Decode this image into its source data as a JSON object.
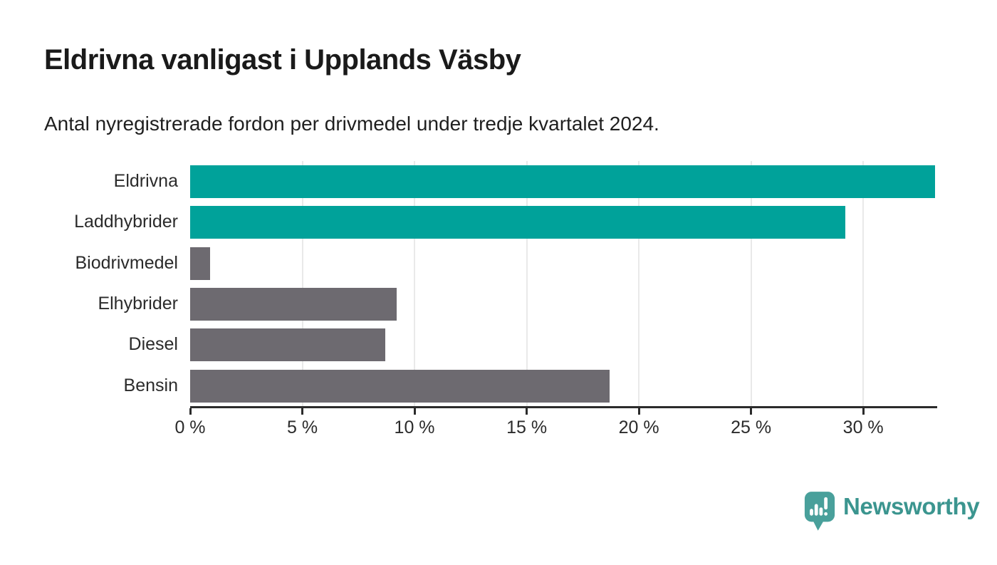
{
  "header": {
    "title": "Eldrivna vanligast i Upplands Väsby",
    "subtitle": "Antal nyregistrerade fordon per drivmedel under tredje kvartalet 2024."
  },
  "chart_data": {
    "type": "bar",
    "orientation": "horizontal",
    "title": "Eldrivna vanligast i Upplands Väsby",
    "subtitle": "Antal nyregistrerade fordon per drivmedel under tredje kvartalet 2024.",
    "categories": [
      "Eldrivna",
      "Laddhybrider",
      "Biodrivmedel",
      "Elhybrider",
      "Diesel",
      "Bensin"
    ],
    "values": [
      33.2,
      29.2,
      0.9,
      9.2,
      8.7,
      18.7
    ],
    "unit": "%",
    "xlim": [
      0,
      33.2
    ],
    "x_ticks": [
      {
        "value": 0,
        "label": "0 %"
      },
      {
        "value": 5,
        "label": "5 %"
      },
      {
        "value": 10,
        "label": "10 %"
      },
      {
        "value": 15,
        "label": "15 %"
      },
      {
        "value": 20,
        "label": "20 %"
      },
      {
        "value": 25,
        "label": "25 %"
      },
      {
        "value": 30,
        "label": "30 %"
      }
    ],
    "grid": "vertical-gridlines-5pct",
    "legend": "none",
    "colors": {
      "bar_colors": [
        "#00a29a",
        "#00a29a",
        "#6d6a70",
        "#6d6a70",
        "#6d6a70",
        "#6d6a70"
      ],
      "highlight": "#00a29a",
      "default": "#6d6a70",
      "gridline": "#e9e9e9",
      "axis": "#2b2b2b",
      "label_text": "#2b2b2b"
    }
  },
  "footer": {
    "brand_name": "Newsworthy",
    "brand_color": "#3b958f",
    "logo_icon": "newsworthy-chart-speech-bubble-icon",
    "logo_icon_color": "#49a09b",
    "logo_icon_glyph_color": "#ffffff"
  }
}
